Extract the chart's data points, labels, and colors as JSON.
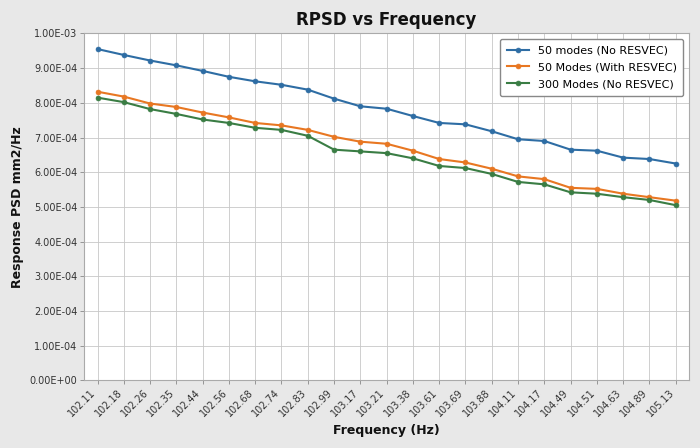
{
  "title": "RPSD vs Frequency",
  "xlabel": "Frequency (Hz)",
  "ylabel": "Response PSD mm2/Hz",
  "x_ticks": [
    102.11,
    102.18,
    102.26,
    102.35,
    102.44,
    102.56,
    102.68,
    102.74,
    102.83,
    102.99,
    103.17,
    103.21,
    103.38,
    103.61,
    103.69,
    103.88,
    104.11,
    104.17,
    104.49,
    104.51,
    104.63,
    104.89,
    105.13
  ],
  "series": [
    {
      "label": "50 modes (No RESVEC)",
      "color": "#2e6da4",
      "marker": "o",
      "marker_size": 3.5,
      "linewidth": 1.5,
      "values": [
        0.000955,
        0.000938,
        0.000922,
        0.000908,
        0.000892,
        0.000875,
        0.000862,
        0.000852,
        0.000838,
        0.000812,
        0.00079,
        0.000783,
        0.000762,
        0.000742,
        0.000738,
        0.000718,
        0.000695,
        0.00069,
        0.000665,
        0.000662,
        0.000642,
        0.000638,
        0.000625
      ]
    },
    {
      "label": "50 Modes (With RESVEC)",
      "color": "#e87722",
      "marker": "o",
      "marker_size": 3.5,
      "linewidth": 1.5,
      "values": [
        0.000832,
        0.000818,
        0.000798,
        0.000788,
        0.000772,
        0.000758,
        0.000742,
        0.000735,
        0.000722,
        0.000702,
        0.000688,
        0.000682,
        0.000662,
        0.000638,
        0.000628,
        0.00061,
        0.000588,
        0.00058,
        0.000555,
        0.000552,
        0.000538,
        0.000528,
        0.000518
      ]
    },
    {
      "label": "300 Modes (No RESVEC)",
      "color": "#3a7d44",
      "marker": "o",
      "marker_size": 3.5,
      "linewidth": 1.5,
      "values": [
        0.000815,
        0.000802,
        0.000782,
        0.000768,
        0.000752,
        0.000742,
        0.000728,
        0.000722,
        0.000705,
        0.000665,
        0.00066,
        0.000655,
        0.00064,
        0.000618,
        0.000612,
        0.000595,
        0.000572,
        0.000565,
        0.000542,
        0.000538,
        0.000528,
        0.00052,
        0.000505
      ]
    }
  ],
  "ylim": [
    0.0,
    0.001
  ],
  "yticks": [
    0.0,
    0.0001,
    0.0002,
    0.0003,
    0.0004,
    0.0005,
    0.0006,
    0.0007,
    0.0008,
    0.0009,
    0.001
  ],
  "ytick_labels": [
    "0.00E+00",
    "1.00E-04",
    "2.00E-04",
    "3.00E-04",
    "4.00E-04",
    "5.00E-04",
    "6.00E-04",
    "7.00E-04",
    "8.00E-04",
    "9.00E-04",
    "1.00E-03"
  ],
  "fig_bg_color": "#e8e8e8",
  "plot_bg_color": "#ffffff",
  "grid_color": "#c8c8c8",
  "title_fontsize": 12,
  "label_fontsize": 9,
  "tick_fontsize": 7,
  "legend_fontsize": 8,
  "figsize": [
    7.0,
    4.48
  ],
  "dpi": 100
}
